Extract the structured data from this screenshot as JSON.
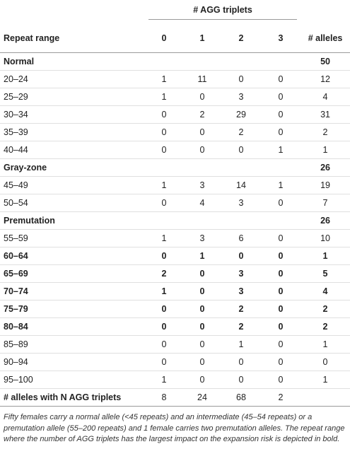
{
  "table": {
    "group_header": "# AGG triplets",
    "columns": [
      "Repeat range",
      "0",
      "1",
      "2",
      "3",
      "# alleles"
    ],
    "rows": [
      {
        "label": "Normal",
        "section": true,
        "total": 50
      },
      {
        "label": "20–24",
        "cells": [
          1,
          11,
          0,
          0
        ],
        "total": 12,
        "bold": false
      },
      {
        "label": "25–29",
        "cells": [
          1,
          0,
          3,
          0
        ],
        "total": 4,
        "bold": false
      },
      {
        "label": "30–34",
        "cells": [
          0,
          2,
          29,
          0
        ],
        "total": 31,
        "bold": false
      },
      {
        "label": "35–39",
        "cells": [
          0,
          0,
          2,
          0
        ],
        "total": 2,
        "bold": false
      },
      {
        "label": "40–44",
        "cells": [
          0,
          0,
          0,
          1
        ],
        "total": 1,
        "bold": false
      },
      {
        "label": "Gray-zone",
        "section": true,
        "total": 26
      },
      {
        "label": "45–49",
        "cells": [
          1,
          3,
          14,
          1
        ],
        "total": 19,
        "bold": false
      },
      {
        "label": "50–54",
        "cells": [
          0,
          4,
          3,
          0
        ],
        "total": 7,
        "bold": false
      },
      {
        "label": "Premutation",
        "section": true,
        "total": 26
      },
      {
        "label": "55–59",
        "cells": [
          1,
          3,
          6,
          0
        ],
        "total": 10,
        "bold": false
      },
      {
        "label": "60–64",
        "cells": [
          0,
          1,
          0,
          0
        ],
        "total": 1,
        "bold": true
      },
      {
        "label": "65–69",
        "cells": [
          2,
          0,
          3,
          0
        ],
        "total": 5,
        "bold": true
      },
      {
        "label": "70–74",
        "cells": [
          1,
          0,
          3,
          0
        ],
        "total": 4,
        "bold": true
      },
      {
        "label": "75–79",
        "cells": [
          0,
          0,
          2,
          0
        ],
        "total": 2,
        "bold": true
      },
      {
        "label": "80–84",
        "cells": [
          0,
          0,
          2,
          0
        ],
        "total": 2,
        "bold": true
      },
      {
        "label": "85–89",
        "cells": [
          0,
          0,
          1,
          0
        ],
        "total": 1,
        "bold": false
      },
      {
        "label": "90–94",
        "cells": [
          0,
          0,
          0,
          0
        ],
        "total": 0,
        "bold": false
      },
      {
        "label": "95–100",
        "cells": [
          1,
          0,
          0,
          0
        ],
        "total": 1,
        "bold": false
      }
    ],
    "footer": {
      "label": "# alleles with N AGG triplets",
      "cells": [
        8,
        24,
        68,
        2
      ]
    },
    "note": "Fifty females carry a normal allele (<45 repeats) and an intermediate (45–54 repeats) or a premutation allele (55–200 repeats) and 1 female carries two premutation alleles. The repeat range where the number of AGG triplets has the largest impact on the expansion risk is depicted in bold."
  }
}
